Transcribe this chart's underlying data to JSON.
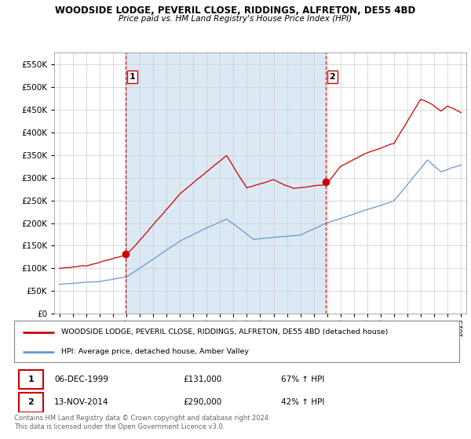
{
  "title": "WOODSIDE LODGE, PEVERIL CLOSE, RIDDINGS, ALFRETON, DE55 4BD",
  "subtitle": "Price paid vs. HM Land Registry's House Price Index (HPI)",
  "legend_line1": "WOODSIDE LODGE, PEVERIL CLOSE, RIDDINGS, ALFRETON, DE55 4BD (detached house)",
  "legend_line2": "HPI: Average price, detached house, Amber Valley",
  "sale1_date": "06-DEC-1999",
  "sale1_price": "£131,000",
  "sale1_hpi": "67% ↑ HPI",
  "sale2_date": "13-NOV-2014",
  "sale2_price": "£290,000",
  "sale2_hpi": "42% ↑ HPI",
  "footer": "Contains HM Land Registry data © Crown copyright and database right 2024.\nThis data is licensed under the Open Government Licence v3.0.",
  "house_color": "#cc0000",
  "hpi_color": "#6699cc",
  "vline_color": "#cc0000",
  "bg_color": "#dce9f5",
  "ylim": [
    0,
    575000
  ],
  "yticks": [
    0,
    50000,
    100000,
    150000,
    200000,
    250000,
    300000,
    350000,
    400000,
    450000,
    500000,
    550000
  ],
  "sale1_year": 1999.92,
  "sale2_year": 2014.87,
  "sale1_price_val": 131000,
  "sale2_price_val": 290000
}
